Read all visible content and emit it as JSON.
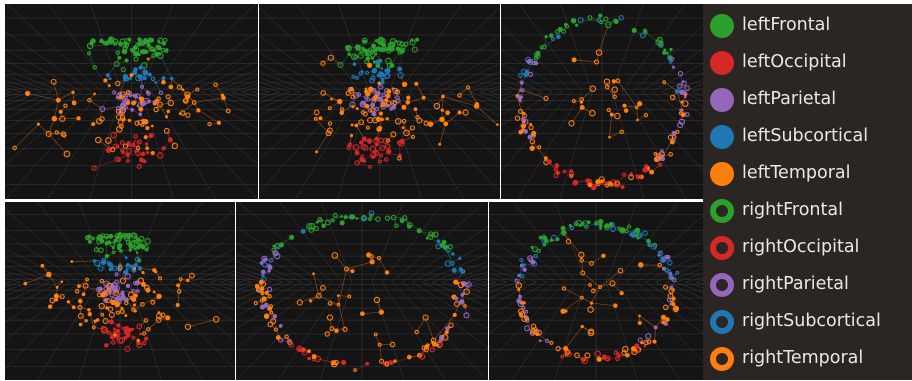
{
  "legend": {
    "items": [
      {
        "label": "leftFrontal",
        "color": "#2ca02c",
        "style": "filled"
      },
      {
        "label": "leftOccipital",
        "color": "#d62728",
        "style": "filled"
      },
      {
        "label": "leftParietal",
        "color": "#9467bd",
        "style": "filled"
      },
      {
        "label": "leftSubcortical",
        "color": "#1f77b4",
        "style": "filled"
      },
      {
        "label": "leftTemporal",
        "color": "#ff7f0e",
        "style": "filled"
      },
      {
        "label": "rightFrontal",
        "color": "#2ca02c",
        "style": "ring"
      },
      {
        "label": "rightOccipital",
        "color": "#d62728",
        "style": "ring"
      },
      {
        "label": "rightParietal",
        "color": "#9467bd",
        "style": "ring"
      },
      {
        "label": "rightSubcortical",
        "color": "#1f77b4",
        "style": "ring"
      },
      {
        "label": "rightTemporal",
        "color": "#ff7f0e",
        "style": "ring"
      }
    ]
  },
  "views": {
    "count": 6,
    "background": "#141414",
    "grid_color": "#5a5a5a"
  }
}
